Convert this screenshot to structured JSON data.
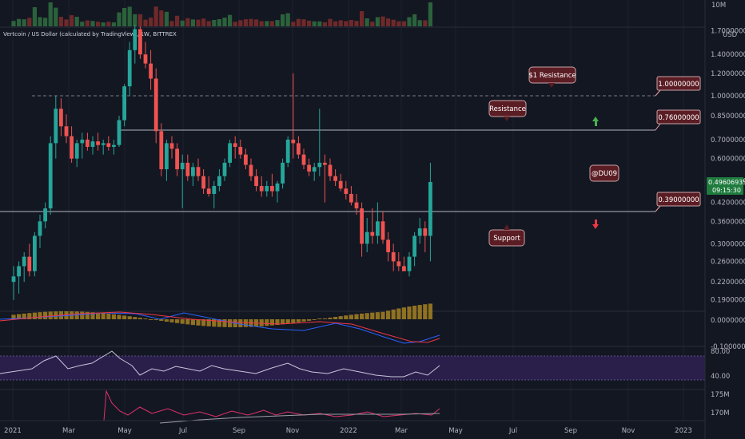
{
  "chart_title": "Vertcoin / US Dollar (calculated by TradingView), 1W, BITTREX",
  "currency": "USD",
  "volume_axis_label": "10M",
  "watermark": "@DU09",
  "labels": {
    "resistance_1": "$1 Resistance",
    "resistance": "Resistance",
    "support": "Support"
  },
  "level_tags": [
    "1.00000000",
    "0.76000000",
    "0.39000000"
  ],
  "price_now": "0.49606935",
  "countdown": "09:15:30",
  "colors": {
    "background": "#131722",
    "up": "#26a69a",
    "down": "#ef5350",
    "label_bg": "#5b1d24",
    "price_tag": "#1e7b3d",
    "macd_line": "#2962ff",
    "signal_line": "#f23645",
    "histogram": "#a68121",
    "rsi_band": "#2a1f4a",
    "rsi_line": "#c9c4dc",
    "arrow_up": "#4caf50",
    "arrow_down": "#f23645"
  },
  "chart_data": {
    "type": "candlestick",
    "title": "Vertcoin / US Dollar (calculated by TradingView), 1W, BITTREX",
    "interval": "1W",
    "x_ticks": [
      "2021",
      "Mar",
      "May",
      "Jul",
      "Sep",
      "Nov",
      "2022",
      "Mar",
      "May",
      "Jul",
      "Sep",
      "Nov",
      "2023"
    ],
    "y_scale": "log",
    "y_ticks": [
      "1.70000000",
      "1.40000000",
      "1.20000000",
      "1.00000000",
      "0.85000000",
      "0.70000000",
      "0.60000000",
      "0.50000000",
      "0.42000000",
      "0.36000000",
      "0.30000000",
      "0.26000000",
      "0.22000000",
      "0.19000000"
    ],
    "ylim": [
      0.18,
      1.78
    ],
    "horizontal_levels": [
      1.0,
      0.76,
      0.39
    ],
    "candles": [
      {
        "o": 0.22,
        "h": 0.25,
        "l": 0.19,
        "c": 0.23
      },
      {
        "o": 0.23,
        "h": 0.26,
        "l": 0.2,
        "c": 0.25
      },
      {
        "o": 0.25,
        "h": 0.28,
        "l": 0.22,
        "c": 0.27
      },
      {
        "o": 0.27,
        "h": 0.3,
        "l": 0.23,
        "c": 0.24
      },
      {
        "o": 0.24,
        "h": 0.33,
        "l": 0.23,
        "c": 0.32
      },
      {
        "o": 0.32,
        "h": 0.38,
        "l": 0.29,
        "c": 0.36
      },
      {
        "o": 0.36,
        "h": 0.42,
        "l": 0.34,
        "c": 0.4
      },
      {
        "o": 0.4,
        "h": 0.72,
        "l": 0.38,
        "c": 0.68
      },
      {
        "o": 0.68,
        "h": 1.0,
        "l": 0.6,
        "c": 0.9
      },
      {
        "o": 0.9,
        "h": 0.98,
        "l": 0.72,
        "c": 0.78
      },
      {
        "o": 0.78,
        "h": 0.86,
        "l": 0.68,
        "c": 0.72
      },
      {
        "o": 0.72,
        "h": 0.78,
        "l": 0.58,
        "c": 0.6
      },
      {
        "o": 0.6,
        "h": 0.7,
        "l": 0.56,
        "c": 0.68
      },
      {
        "o": 0.68,
        "h": 0.74,
        "l": 0.6,
        "c": 0.7
      },
      {
        "o": 0.7,
        "h": 0.74,
        "l": 0.64,
        "c": 0.66
      },
      {
        "o": 0.66,
        "h": 0.72,
        "l": 0.62,
        "c": 0.69
      },
      {
        "o": 0.69,
        "h": 0.74,
        "l": 0.64,
        "c": 0.67
      },
      {
        "o": 0.67,
        "h": 0.7,
        "l": 0.62,
        "c": 0.68
      },
      {
        "o": 0.68,
        "h": 0.72,
        "l": 0.64,
        "c": 0.66
      },
      {
        "o": 0.66,
        "h": 0.7,
        "l": 0.62,
        "c": 0.67
      },
      {
        "o": 0.67,
        "h": 0.85,
        "l": 0.66,
        "c": 0.82
      },
      {
        "o": 0.82,
        "h": 1.1,
        "l": 0.78,
        "c": 1.08
      },
      {
        "o": 1.08,
        "h": 1.55,
        "l": 1.0,
        "c": 1.45
      },
      {
        "o": 1.45,
        "h": 1.78,
        "l": 1.3,
        "c": 1.72
      },
      {
        "o": 1.72,
        "h": 1.76,
        "l": 1.35,
        "c": 1.4
      },
      {
        "o": 1.4,
        "h": 1.55,
        "l": 1.25,
        "c": 1.3
      },
      {
        "o": 1.3,
        "h": 1.45,
        "l": 1.05,
        "c": 1.15
      },
      {
        "o": 1.15,
        "h": 1.25,
        "l": 0.68,
        "c": 0.75
      },
      {
        "o": 0.75,
        "h": 0.8,
        "l": 0.52,
        "c": 0.55
      },
      {
        "o": 0.55,
        "h": 0.7,
        "l": 0.5,
        "c": 0.68
      },
      {
        "o": 0.68,
        "h": 0.72,
        "l": 0.6,
        "c": 0.65
      },
      {
        "o": 0.65,
        "h": 0.68,
        "l": 0.52,
        "c": 0.55
      },
      {
        "o": 0.55,
        "h": 0.62,
        "l": 0.4,
        "c": 0.58
      },
      {
        "o": 0.58,
        "h": 0.62,
        "l": 0.5,
        "c": 0.52
      },
      {
        "o": 0.52,
        "h": 0.58,
        "l": 0.48,
        "c": 0.56
      },
      {
        "o": 0.56,
        "h": 0.6,
        "l": 0.5,
        "c": 0.52
      },
      {
        "o": 0.52,
        "h": 0.55,
        "l": 0.45,
        "c": 0.47
      },
      {
        "o": 0.47,
        "h": 0.52,
        "l": 0.44,
        "c": 0.45
      },
      {
        "o": 0.45,
        "h": 0.5,
        "l": 0.4,
        "c": 0.48
      },
      {
        "o": 0.48,
        "h": 0.55,
        "l": 0.46,
        "c": 0.52
      },
      {
        "o": 0.52,
        "h": 0.6,
        "l": 0.5,
        "c": 0.58
      },
      {
        "o": 0.58,
        "h": 0.7,
        "l": 0.56,
        "c": 0.68
      },
      {
        "o": 0.68,
        "h": 0.72,
        "l": 0.6,
        "c": 0.66
      },
      {
        "o": 0.66,
        "h": 0.7,
        "l": 0.6,
        "c": 0.62
      },
      {
        "o": 0.62,
        "h": 0.65,
        "l": 0.55,
        "c": 0.57
      },
      {
        "o": 0.57,
        "h": 0.6,
        "l": 0.5,
        "c": 0.52
      },
      {
        "o": 0.52,
        "h": 0.55,
        "l": 0.46,
        "c": 0.48
      },
      {
        "o": 0.48,
        "h": 0.52,
        "l": 0.44,
        "c": 0.46
      },
      {
        "o": 0.46,
        "h": 0.5,
        "l": 0.44,
        "c": 0.48
      },
      {
        "o": 0.48,
        "h": 0.53,
        "l": 0.44,
        "c": 0.46
      },
      {
        "o": 0.46,
        "h": 0.5,
        "l": 0.42,
        "c": 0.49
      },
      {
        "o": 0.49,
        "h": 0.6,
        "l": 0.47,
        "c": 0.58
      },
      {
        "o": 0.58,
        "h": 0.72,
        "l": 0.56,
        "c": 0.7
      },
      {
        "o": 0.7,
        "h": 1.2,
        "l": 0.6,
        "c": 0.68
      },
      {
        "o": 0.68,
        "h": 0.72,
        "l": 0.6,
        "c": 0.62
      },
      {
        "o": 0.62,
        "h": 0.65,
        "l": 0.55,
        "c": 0.57
      },
      {
        "o": 0.57,
        "h": 0.6,
        "l": 0.52,
        "c": 0.54
      },
      {
        "o": 0.54,
        "h": 0.58,
        "l": 0.5,
        "c": 0.56
      },
      {
        "o": 0.56,
        "h": 0.9,
        "l": 0.52,
        "c": 0.58
      },
      {
        "o": 0.58,
        "h": 0.62,
        "l": 0.42,
        "c": 0.57
      },
      {
        "o": 0.57,
        "h": 0.6,
        "l": 0.5,
        "c": 0.52
      },
      {
        "o": 0.52,
        "h": 0.55,
        "l": 0.48,
        "c": 0.5
      },
      {
        "o": 0.5,
        "h": 0.53,
        "l": 0.46,
        "c": 0.47
      },
      {
        "o": 0.47,
        "h": 0.5,
        "l": 0.43,
        "c": 0.45
      },
      {
        "o": 0.45,
        "h": 0.48,
        "l": 0.41,
        "c": 0.42
      },
      {
        "o": 0.42,
        "h": 0.45,
        "l": 0.38,
        "c": 0.4
      },
      {
        "o": 0.4,
        "h": 0.42,
        "l": 0.27,
        "c": 0.3
      },
      {
        "o": 0.3,
        "h": 0.37,
        "l": 0.28,
        "c": 0.33
      },
      {
        "o": 0.33,
        "h": 0.4,
        "l": 0.3,
        "c": 0.32
      },
      {
        "o": 0.32,
        "h": 0.42,
        "l": 0.3,
        "c": 0.36
      },
      {
        "o": 0.36,
        "h": 0.39,
        "l": 0.3,
        "c": 0.31
      },
      {
        "o": 0.31,
        "h": 0.33,
        "l": 0.26,
        "c": 0.28
      },
      {
        "o": 0.28,
        "h": 0.3,
        "l": 0.24,
        "c": 0.26
      },
      {
        "o": 0.26,
        "h": 0.28,
        "l": 0.24,
        "c": 0.25
      },
      {
        "o": 0.25,
        "h": 0.27,
        "l": 0.24,
        "c": 0.24
      },
      {
        "o": 0.24,
        "h": 0.28,
        "l": 0.23,
        "c": 0.27
      },
      {
        "o": 0.27,
        "h": 0.33,
        "l": 0.25,
        "c": 0.32
      },
      {
        "o": 0.32,
        "h": 0.37,
        "l": 0.3,
        "c": 0.34
      },
      {
        "o": 0.34,
        "h": 0.36,
        "l": 0.28,
        "c": 0.32
      },
      {
        "o": 0.32,
        "h": 0.58,
        "l": 0.26,
        "c": 0.496
      }
    ],
    "indicators": {
      "macd_axis": [
        "0.00000000",
        "-0.10000000"
      ],
      "rsi_axis": [
        "80.00",
        "40.00"
      ],
      "obv_axis": [
        "175M",
        "170M"
      ]
    }
  }
}
